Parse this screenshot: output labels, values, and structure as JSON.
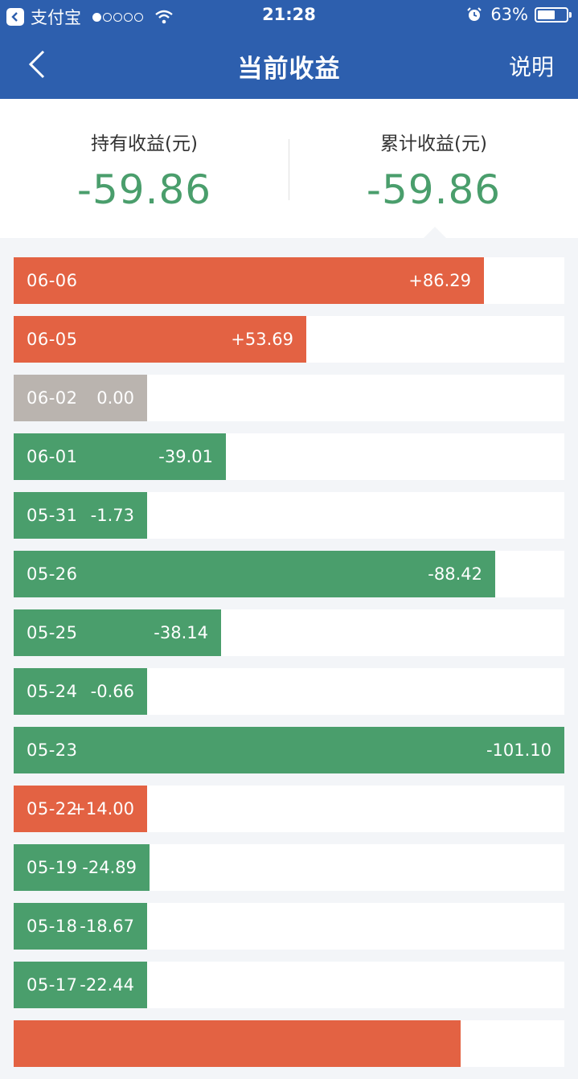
{
  "status_bar": {
    "app_name": "支付宝",
    "time": "21:28",
    "battery": "63%",
    "battery_level": 0.63,
    "signal_filled": 1,
    "signal_total": 5
  },
  "nav": {
    "title": "当前收益",
    "help_label": "说明"
  },
  "summary": {
    "holding_label": "持有收益(元)",
    "holding_value": "-59.86",
    "cumulative_label": "累计收益(元)",
    "cumulative_value": "-59.86"
  },
  "colors": {
    "header": "#2d5fae",
    "gain": "#e36243",
    "loss": "#4a9e6c",
    "zero": "#bab4af"
  },
  "earnings": [
    {
      "date": "06-06",
      "value": "+86.29",
      "amount": 86.29
    },
    {
      "date": "06-05",
      "value": "+53.69",
      "amount": 53.69
    },
    {
      "date": "06-02",
      "value": "0.00",
      "amount": 0
    },
    {
      "date": "06-01",
      "value": "-39.01",
      "amount": -39.01
    },
    {
      "date": "05-31",
      "value": "-1.73",
      "amount": -1.73
    },
    {
      "date": "05-26",
      "value": "-88.42",
      "amount": -88.42
    },
    {
      "date": "05-25",
      "value": "-38.14",
      "amount": -38.14
    },
    {
      "date": "05-24",
      "value": "-0.66",
      "amount": -0.66
    },
    {
      "date": "05-23",
      "value": "-101.10",
      "amount": -101.1
    },
    {
      "date": "05-22",
      "value": "+14.00",
      "amount": 14.0
    },
    {
      "date": "05-19",
      "value": "-24.89",
      "amount": -24.89
    },
    {
      "date": "05-18",
      "value": "-18.67",
      "amount": -18.67
    },
    {
      "date": "05-17",
      "value": "-22.44",
      "amount": -22.44
    },
    {
      "date": "",
      "value": "",
      "amount": 82
    }
  ]
}
